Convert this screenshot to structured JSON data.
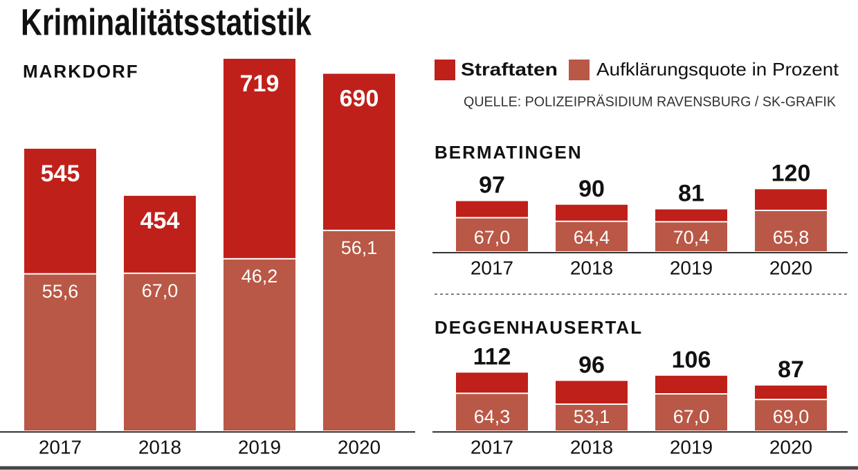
{
  "title": "Kriminalitätsstatistik",
  "source": "QUELLE: POLIZEIPRÄSIDIUM RAVENSBURG / SK-GRAFIK",
  "chart_data": [
    {
      "type": "bar",
      "title": "MARKDORF",
      "categories": [
        "2017",
        "2018",
        "2019",
        "2020"
      ],
      "series": [
        {
          "name": "Straftaten",
          "color": "#c0201a",
          "values": [
            545,
            454,
            719,
            690
          ]
        },
        {
          "name": "Aufklärungsquote in Prozent",
          "color": "#b95846",
          "values": [
            55.6,
            67.0,
            46.2,
            56.1
          ],
          "value_labels": [
            "55,6",
            "67,0",
            "46,2",
            "56,1"
          ]
        }
      ]
    },
    {
      "type": "bar",
      "title": "BERMATINGEN",
      "categories": [
        "2017",
        "2018",
        "2019",
        "2020"
      ],
      "series": [
        {
          "color": "#c0201a",
          "values": [
            97,
            90,
            81,
            120
          ]
        },
        {
          "color": "#b95846",
          "values": [
            67.0,
            64.4,
            70.4,
            65.8
          ],
          "value_labels": [
            "67,0",
            "64,4",
            "70,4",
            "65,8"
          ]
        }
      ]
    },
    {
      "type": "bar",
      "title": "DEGGENHAUSERTAL",
      "categories": [
        "2017",
        "2018",
        "2019",
        "2020"
      ],
      "series": [
        {
          "color": "#c0201a",
          "values": [
            112,
            96,
            106,
            87
          ]
        },
        {
          "color": "#b95846",
          "values": [
            64.3,
            53.1,
            67.0,
            69.0
          ],
          "value_labels": [
            "64,3",
            "53,1",
            "67,0",
            "69,0"
          ]
        }
      ]
    }
  ]
}
